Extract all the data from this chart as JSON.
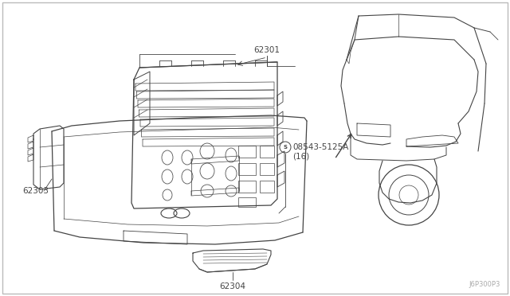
{
  "bg_color": "#ffffff",
  "line_color": "#444444",
  "light_color": "#888888",
  "label_color": "#333333",
  "diagram_code": "J6P300P3",
  "labels": {
    "62301": [
      0.335,
      0.935
    ],
    "62303": [
      0.028,
      0.56
    ],
    "62304": [
      0.295,
      0.075
    ],
    "part_num": "08543-5125A",
    "part_qty": "(16)"
  }
}
